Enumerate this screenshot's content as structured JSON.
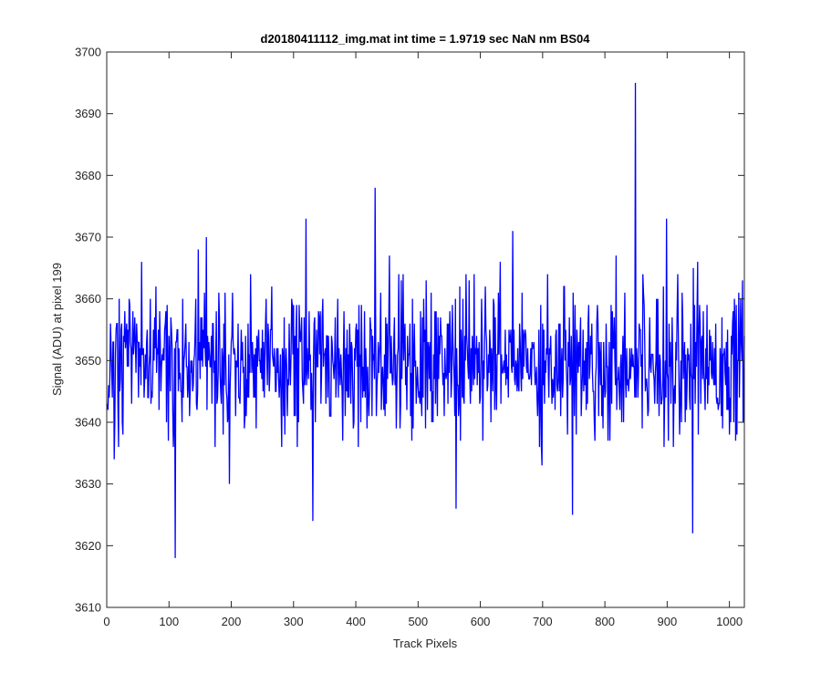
{
  "chart_data": {
    "type": "line",
    "title": "d20180411112_img.mat int time = 1.9719 sec  NaN nm BS04",
    "xlabel": "Track Pixels",
    "ylabel": "Signal (ADU) at pixel 199",
    "xlim": [
      0,
      1024
    ],
    "ylim": [
      3610,
      3700
    ],
    "xticks": [
      0,
      100,
      200,
      300,
      400,
      500,
      600,
      700,
      800,
      900,
      1000
    ],
    "yticks": [
      3610,
      3620,
      3630,
      3640,
      3650,
      3660,
      3670,
      3680,
      3690,
      3700
    ],
    "grid": false,
    "series": [
      {
        "color": "#0000ff",
        "n_points": 1024,
        "mean": 3650,
        "noise_std": 6,
        "x_start": 1,
        "x_end": 1024,
        "notable_points": [
          {
            "x": 12,
            "y": 3634
          },
          {
            "x": 56,
            "y": 3666
          },
          {
            "x": 110,
            "y": 3618
          },
          {
            "x": 160,
            "y": 3670
          },
          {
            "x": 197,
            "y": 3630
          },
          {
            "x": 320,
            "y": 3673
          },
          {
            "x": 331,
            "y": 3624
          },
          {
            "x": 431,
            "y": 3678
          },
          {
            "x": 561,
            "y": 3626
          },
          {
            "x": 652,
            "y": 3671
          },
          {
            "x": 748,
            "y": 3625
          },
          {
            "x": 849,
            "y": 3695
          },
          {
            "x": 899,
            "y": 3673
          },
          {
            "x": 941,
            "y": 3622
          },
          {
            "x": 1012,
            "y": 3638
          }
        ]
      }
    ]
  }
}
